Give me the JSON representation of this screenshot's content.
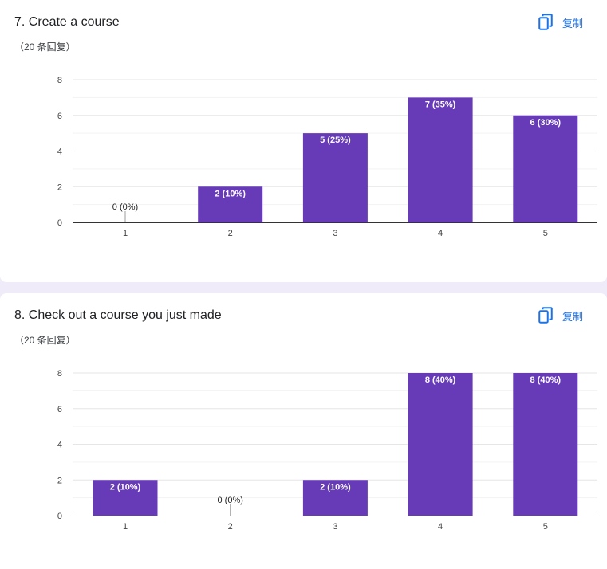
{
  "copy_icon_name": "content-copy-icon",
  "accent_color": "#1a73e8",
  "bar_color": "#673ab7",
  "questions": [
    {
      "title": "7. Create a course",
      "response_count": "（20 条回复）",
      "copy_label": "复制"
    },
    {
      "title": "8. Check out a course you just made",
      "response_count": "（20 条回复）",
      "copy_label": "复制"
    }
  ],
  "chart_data": [
    {
      "type": "bar",
      "categories": [
        "1",
        "2",
        "3",
        "4",
        "5"
      ],
      "values": [
        0,
        2,
        5,
        7,
        6
      ],
      "data_labels": [
        "0 (0%)",
        "2 (10%)",
        "5 (25%)",
        "7 (35%)",
        "6 (30%)"
      ],
      "yticks": [
        0,
        2,
        4,
        6,
        8
      ],
      "ylim": [
        0,
        8
      ],
      "grid": true
    },
    {
      "type": "bar",
      "categories": [
        "1",
        "2",
        "3",
        "4",
        "5"
      ],
      "values": [
        2,
        0,
        2,
        8,
        8
      ],
      "data_labels": [
        "2 (10%)",
        "0 (0%)",
        "2 (10%)",
        "8 (40%)",
        "8 (40%)"
      ],
      "yticks": [
        0,
        2,
        4,
        6,
        8
      ],
      "ylim": [
        0,
        8
      ],
      "grid": true
    }
  ]
}
